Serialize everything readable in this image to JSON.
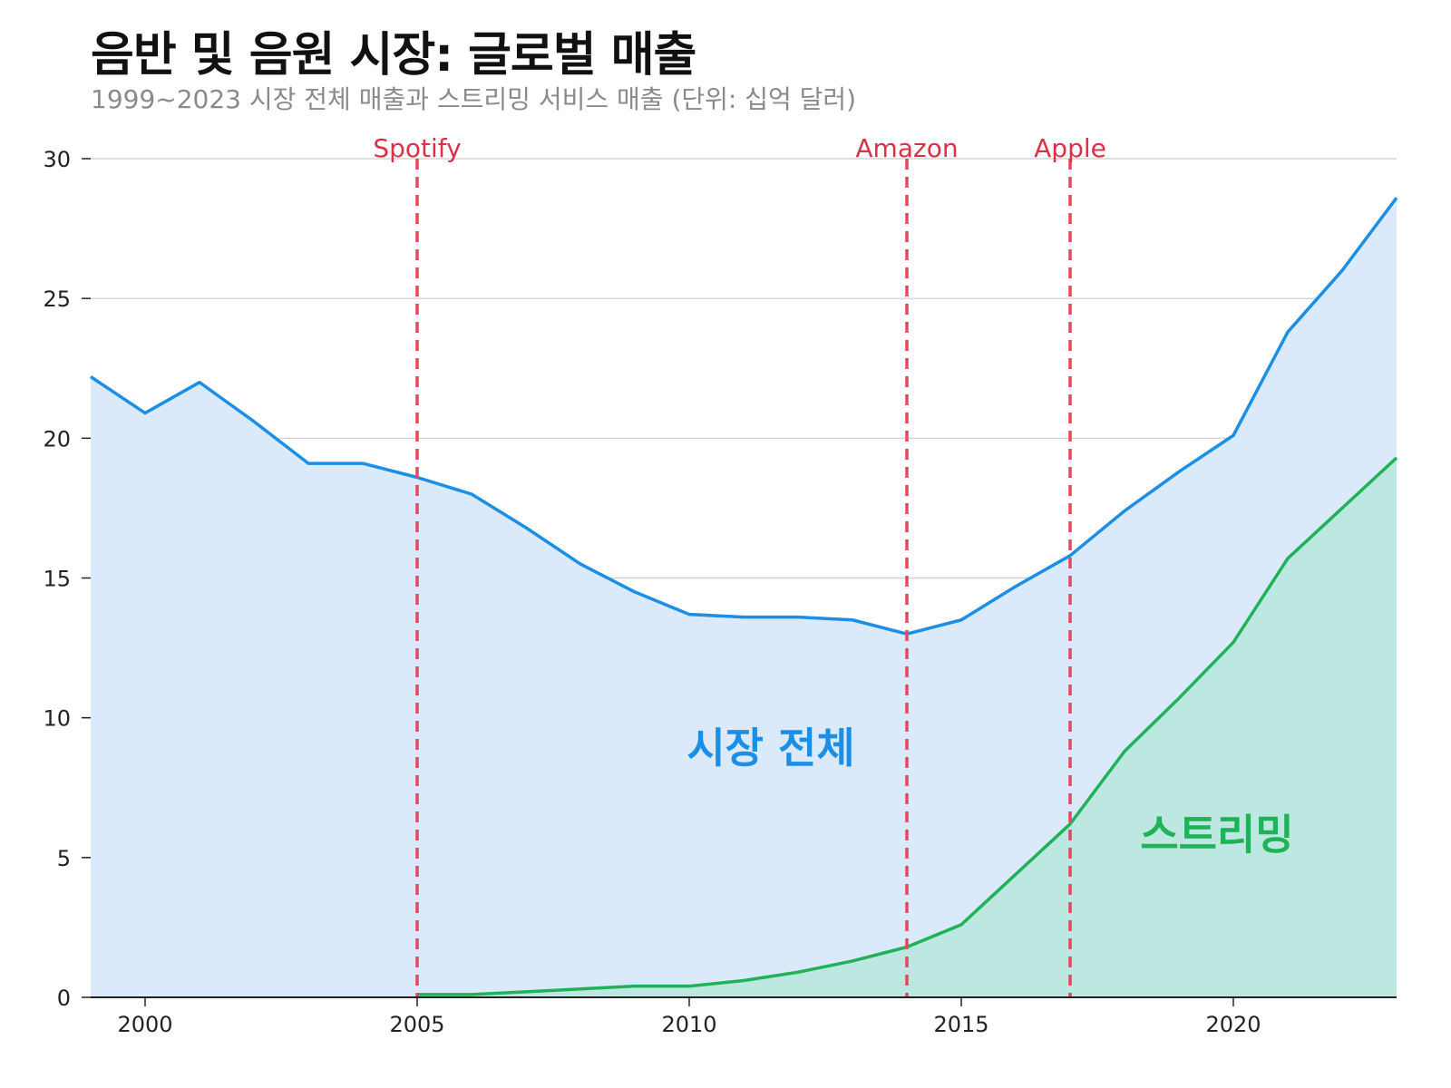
{
  "title": "음반 및 음원 시장: 글로벌 매출",
  "subtitle": "1999~2023 시장 전체 매출과 스트리밍 서비스 매출 (단위: 십억 달러)",
  "colors": {
    "total_line": "#1b8ee6",
    "total_fill": "#dbeafb",
    "streaming_line": "#1fb257",
    "streaming_fill": "#bde7e1",
    "event_line": "#e5475e",
    "event_text": "#dc3046",
    "grid": "#c9ccd4"
  },
  "chart_data": {
    "type": "area",
    "xlim": [
      1999,
      2023
    ],
    "ylim": [
      0,
      30
    ],
    "x_ticks": [
      2000,
      2005,
      2010,
      2015,
      2020
    ],
    "y_ticks": [
      0,
      5,
      10,
      15,
      20,
      25,
      30
    ],
    "grid": "horizontal",
    "series": [
      {
        "name": "시장 전체",
        "x": [
          1999,
          2000,
          2001,
          2002,
          2003,
          2004,
          2005,
          2006,
          2007,
          2008,
          2009,
          2010,
          2011,
          2012,
          2013,
          2014,
          2015,
          2016,
          2017,
          2018,
          2019,
          2020,
          2021,
          2022,
          2023
        ],
        "values": [
          22.2,
          20.9,
          22.0,
          20.6,
          19.1,
          19.1,
          18.6,
          18.0,
          16.8,
          15.5,
          14.5,
          13.7,
          13.6,
          13.6,
          13.5,
          13.0,
          13.5,
          14.7,
          15.8,
          17.4,
          18.8,
          20.1,
          23.8,
          26.0,
          28.6
        ]
      },
      {
        "name": "스트리밍",
        "x": [
          2005,
          2006,
          2007,
          2008,
          2009,
          2010,
          2011,
          2012,
          2013,
          2014,
          2015,
          2016,
          2017,
          2018,
          2019,
          2020,
          2021,
          2022,
          2023
        ],
        "values": [
          0.1,
          0.1,
          0.2,
          0.3,
          0.4,
          0.4,
          0.6,
          0.9,
          1.3,
          1.8,
          2.6,
          4.4,
          6.2,
          8.8,
          10.7,
          12.7,
          15.7,
          17.5,
          19.3
        ]
      }
    ],
    "events": [
      {
        "label": "Spotify",
        "x": 2005
      },
      {
        "label": "Amazon",
        "x": 2014
      },
      {
        "label": "Apple",
        "x": 2017
      }
    ],
    "area_labels": [
      {
        "text": "시장 전체",
        "series": 0,
        "x": 2011.5,
        "y": 8.4
      },
      {
        "text": "스트리밍",
        "series": 1,
        "x": 2019.7,
        "y": 5.3
      }
    ]
  }
}
